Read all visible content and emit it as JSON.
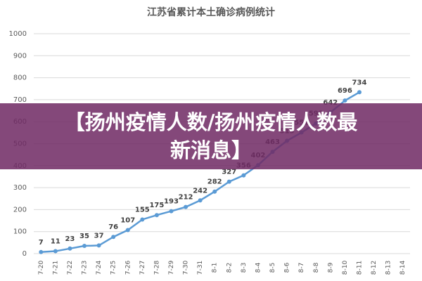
{
  "chart_data": {
    "type": "line",
    "title": "江苏省累计本土确诊病例统计",
    "categories": [
      "7-20",
      "7-21",
      "7-22",
      "7-23",
      "7-24",
      "7-25",
      "7-26",
      "7-27",
      "7-28",
      "7-29",
      "7-30",
      "7-31",
      "8-1",
      "8-2",
      "8-3",
      "8-4",
      "8-5",
      "8-6",
      "8-7",
      "8-8",
      "8-9",
      "8-10",
      "8-11",
      "8-12",
      "8-13",
      "8-14"
    ],
    "series": [
      {
        "name": "累计本土确诊",
        "color": "#5b9bd5",
        "values": [
          7,
          11,
          23,
          35,
          37,
          76,
          107,
          155,
          175,
          193,
          212,
          242,
          282,
          327,
          356,
          402,
          463,
          513,
          551,
          592,
          642,
          696,
          734,
          null,
          null,
          null
        ]
      }
    ],
    "ylim": [
      0,
      1000
    ],
    "yticks": [
      0,
      100,
      200,
      300,
      400,
      500,
      600,
      700,
      800,
      900,
      1000
    ],
    "grid": true
  },
  "overlay_lines": [
    "【扬州疫情人数/扬州疫情人数最",
    "新消息】"
  ]
}
